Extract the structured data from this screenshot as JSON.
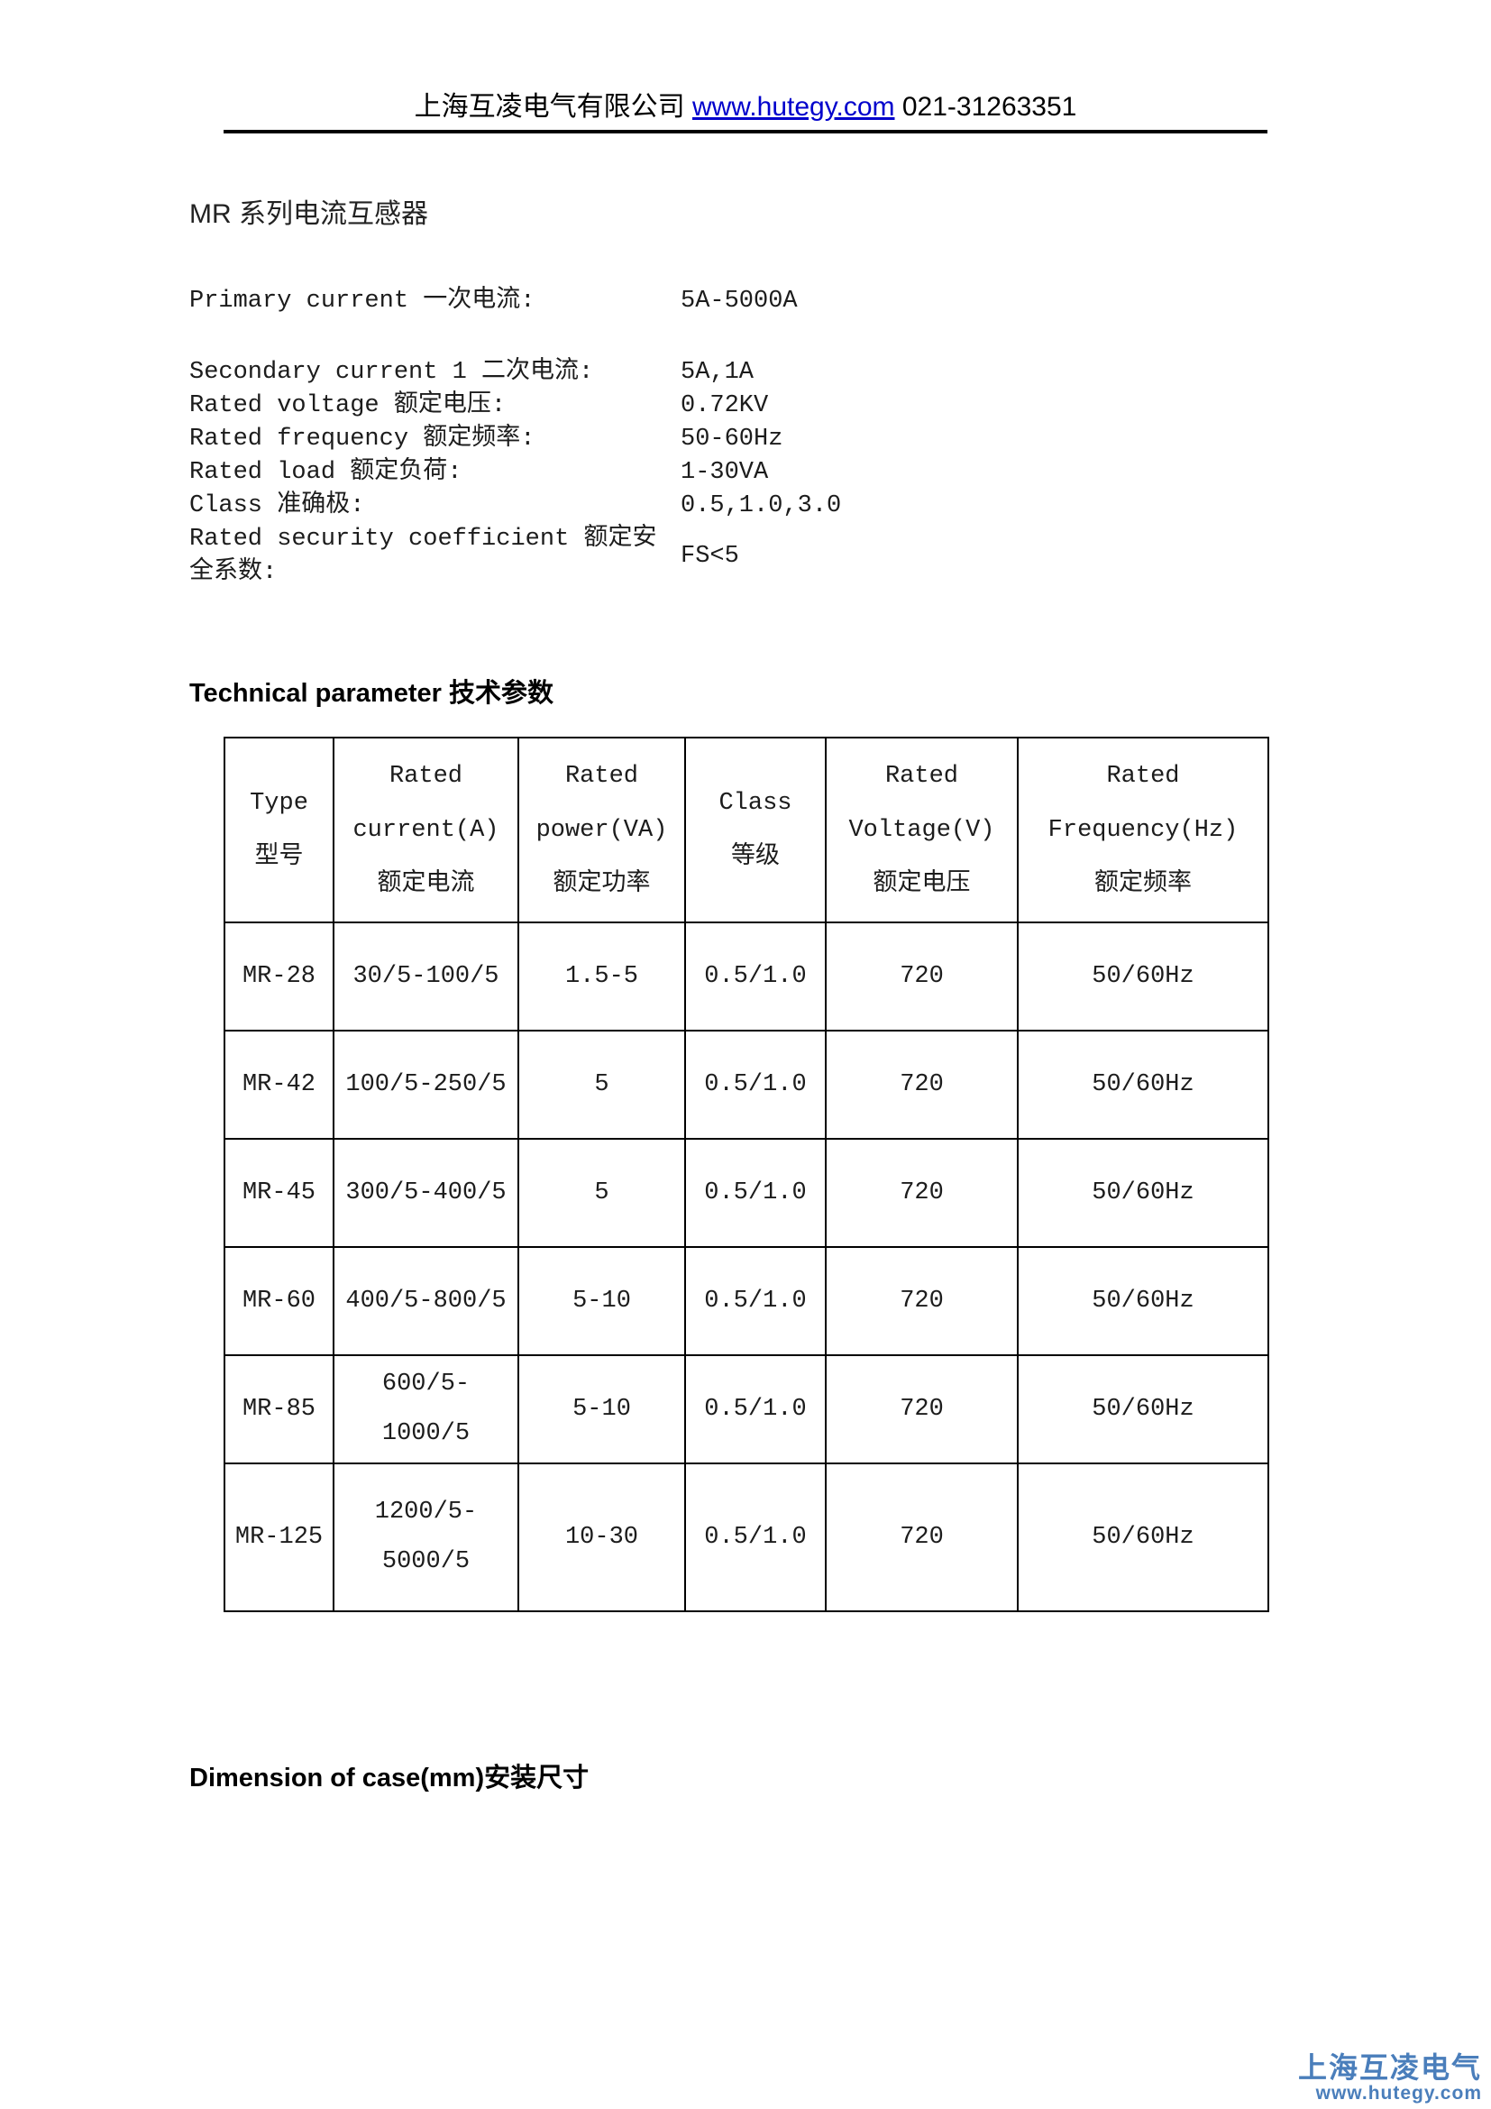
{
  "header": {
    "company": "上海互凌电气有限公司",
    "link_label": "www.hutegy.com",
    "phone": "021-31263351"
  },
  "title": "MR 系列电流互感器",
  "specs": {
    "rows": [
      {
        "label": "Primary current 一次电流:",
        "value": "5A-5000A"
      },
      {
        "label": "Secondary current 1 二次电流:",
        "value": "5A,1A"
      },
      {
        "label": "Rated  voltage 额定电压:",
        "value": "0.72KV"
      },
      {
        "label": "Rated  frequency 额定频率:",
        "value": "50-60Hz"
      },
      {
        "label": "Rated load 额定负荷:",
        "value": "1-30VA"
      },
      {
        "label": "Class 准确极:",
        "value": "0.5,1.0,3.0"
      },
      {
        "label": "Rated security coefficient 额定安全系数:",
        "value": "FS<5"
      }
    ]
  },
  "headings": {
    "technical": "Technical parameter 技术参数",
    "dimension": "Dimension of case(mm)安装尺寸"
  },
  "table": {
    "columns": [
      {
        "lines": [
          "Type",
          "型号"
        ]
      },
      {
        "lines": [
          "Rated",
          "current(A)",
          "额定电流"
        ]
      },
      {
        "lines": [
          "Rated",
          "power(VA)",
          "额定功率"
        ]
      },
      {
        "lines": [
          "Class",
          "等级"
        ]
      },
      {
        "lines": [
          "Rated",
          "Voltage(V)",
          "额定电压"
        ]
      },
      {
        "lines": [
          "Rated",
          "Frequency(Hz)",
          "额定频率"
        ]
      }
    ],
    "rows": [
      [
        "MR-28",
        "30/5-100/5",
        "1.5-5",
        "0.5/1.0",
        "720",
        "50/60Hz"
      ],
      [
        "MR-42",
        "100/5-250/5",
        "5",
        "0.5/1.0",
        "720",
        "50/60Hz"
      ],
      [
        "MR-45",
        "300/5-400/5",
        "5",
        "0.5/1.0",
        "720",
        "50/60Hz"
      ],
      [
        "MR-60",
        "400/5-800/5",
        "5-10",
        "0.5/1.0",
        "720",
        "50/60Hz"
      ],
      [
        "MR-85",
        "600/5-1000/5",
        "5-10",
        "0.5/1.0",
        "720",
        "50/60Hz"
      ],
      [
        "MR-125",
        "1200/5-5000/5",
        "10-30",
        "0.5/1.0",
        "720",
        "50/60Hz"
      ]
    ]
  },
  "watermark": {
    "company": "上海互凌电气",
    "url": "www.hutegy.com",
    "color": "#4a7ebb"
  },
  "link_color": "#0000cc"
}
